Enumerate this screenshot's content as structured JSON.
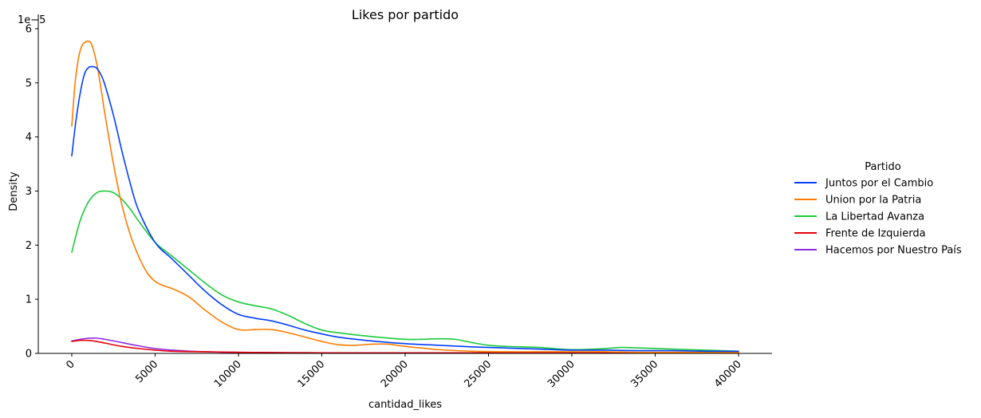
{
  "chart_data": {
    "type": "line",
    "title": "Likes por partido",
    "xlabel": "cantidad_likes",
    "ylabel": "Density",
    "y_multiplier_label": "1e−5",
    "xlim": [
      0,
      40000
    ],
    "ylim": [
      0,
      6
    ],
    "x_ticks": [
      0,
      5000,
      10000,
      15000,
      20000,
      25000,
      30000,
      35000,
      40000
    ],
    "y_ticks": [
      0,
      1,
      2,
      3,
      4,
      5,
      6
    ],
    "grid": false,
    "legend": {
      "title": "Partido",
      "placement": "right"
    },
    "series": [
      {
        "name": "Juntos por el Cambio",
        "color": "#023eff",
        "x": [
          0,
          250,
          500,
          750,
          1000,
          1250,
          1500,
          1750,
          2000,
          2500,
          3000,
          3500,
          4000,
          5000,
          6000,
          7000,
          8000,
          9000,
          10000,
          11000,
          12000,
          13000,
          14000,
          15000,
          16000,
          18000,
          20000,
          22000,
          24000,
          26000,
          28000,
          30000,
          32000,
          34000,
          36000,
          38000,
          40000
        ],
        "y": [
          3.65,
          4.3,
          4.8,
          5.15,
          5.28,
          5.3,
          5.27,
          5.15,
          4.95,
          4.4,
          3.75,
          3.15,
          2.65,
          2.05,
          1.75,
          1.45,
          1.15,
          0.9,
          0.72,
          0.65,
          0.6,
          0.52,
          0.43,
          0.36,
          0.3,
          0.23,
          0.18,
          0.15,
          0.12,
          0.1,
          0.08,
          0.06,
          0.06,
          0.05,
          0.05,
          0.04,
          0.04
        ]
      },
      {
        "name": "Union por la Patria",
        "color": "#ff7c00",
        "x": [
          0,
          200,
          400,
          600,
          800,
          1000,
          1200,
          1500,
          1800,
          2000,
          2500,
          3000,
          3500,
          4000,
          4500,
          5000,
          5500,
          6000,
          7000,
          8000,
          9000,
          10000,
          11000,
          12000,
          13000,
          14000,
          15000,
          16000,
          17000,
          18000,
          19000,
          20000,
          22000,
          24000,
          26000,
          28000,
          30000,
          32000,
          34000,
          36000,
          38000,
          40000
        ],
        "y": [
          4.2,
          5.0,
          5.45,
          5.68,
          5.75,
          5.77,
          5.7,
          5.35,
          4.8,
          4.4,
          3.5,
          2.75,
          2.2,
          1.8,
          1.5,
          1.33,
          1.25,
          1.2,
          1.05,
          0.8,
          0.58,
          0.44,
          0.44,
          0.44,
          0.38,
          0.3,
          0.22,
          0.16,
          0.15,
          0.17,
          0.17,
          0.13,
          0.07,
          0.04,
          0.03,
          0.03,
          0.03,
          0.03,
          0.02,
          0.02,
          0.02,
          0.02
        ]
      },
      {
        "name": "La Libertad Avanza",
        "color": "#1ac938",
        "x": [
          0,
          500,
          1000,
          1500,
          2000,
          2500,
          3000,
          3500,
          4000,
          5000,
          6000,
          7000,
          8000,
          9000,
          10000,
          11000,
          12000,
          13000,
          14000,
          15000,
          16000,
          18000,
          20000,
          21000,
          22000,
          23000,
          24000,
          25000,
          26000,
          28000,
          30000,
          32000,
          33000,
          34000,
          36000,
          38000,
          40000
        ],
        "y": [
          1.87,
          2.45,
          2.8,
          2.97,
          3.0,
          2.97,
          2.85,
          2.67,
          2.45,
          2.05,
          1.8,
          1.55,
          1.3,
          1.08,
          0.95,
          0.88,
          0.82,
          0.7,
          0.55,
          0.43,
          0.38,
          0.31,
          0.26,
          0.26,
          0.27,
          0.26,
          0.2,
          0.15,
          0.13,
          0.11,
          0.07,
          0.09,
          0.11,
          0.1,
          0.08,
          0.06,
          0.04
        ]
      },
      {
        "name": "Frente de Izquierda",
        "color": "#e8000b",
        "x": [
          0,
          500,
          1000,
          1500,
          2000,
          3000,
          4000,
          5000,
          6000,
          8000,
          10000,
          15000,
          20000,
          25000,
          30000,
          35000,
          40000
        ],
        "y": [
          0.22,
          0.24,
          0.24,
          0.22,
          0.19,
          0.13,
          0.09,
          0.06,
          0.04,
          0.03,
          0.02,
          0.01,
          0.01,
          0.01,
          0.01,
          0.01,
          0.01
        ]
      },
      {
        "name": "Hacemos por Nuestro País",
        "color": "#8b2be2",
        "x": [
          0,
          500,
          1000,
          1500,
          2000,
          3000,
          4000,
          5000,
          6000,
          8000,
          10000,
          15000,
          20000,
          25000,
          30000,
          35000,
          40000
        ],
        "y": [
          0.23,
          0.26,
          0.28,
          0.28,
          0.26,
          0.2,
          0.14,
          0.09,
          0.06,
          0.03,
          0.02,
          0.01,
          0.01,
          0.01,
          0.01,
          0.01,
          0.01
        ]
      }
    ]
  }
}
